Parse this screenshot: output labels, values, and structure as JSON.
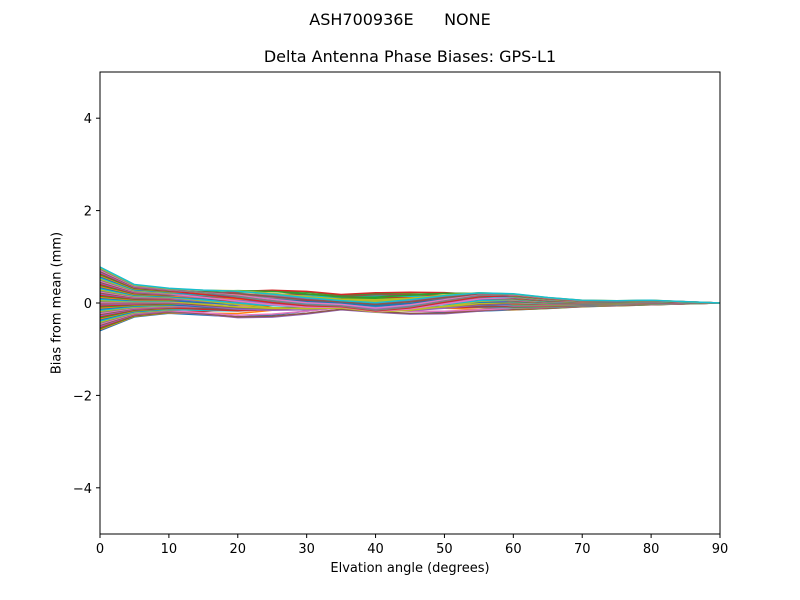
{
  "figure": {
    "suptitle": "ASH700936E      NONE",
    "title": "Delta Antenna Phase Biases: GPS-L1",
    "xlabel": "Elvation angle (degrees)",
    "ylabel": "Bias from mean (mm)"
  },
  "chart_data": {
    "type": "line",
    "title": "Delta Antenna Phase Biases: GPS-L1",
    "suptitle": "ASH700936E      NONE",
    "xlabel": "Elvation angle (degrees)",
    "ylabel": "Bias from mean (mm)",
    "xlim": [
      0,
      90
    ],
    "ylim": [
      -5,
      5
    ],
    "xticks": [
      0,
      10,
      20,
      30,
      40,
      50,
      60,
      70,
      80,
      90
    ],
    "yticks": [
      -4,
      -2,
      0,
      2,
      4
    ],
    "ytick_labels": [
      "−4",
      "−2",
      "0",
      "2",
      "4"
    ],
    "grid": false,
    "legend": null,
    "x": [
      0,
      5,
      10,
      15,
      20,
      25,
      30,
      35,
      40,
      45,
      50,
      55,
      60,
      65,
      70,
      75,
      80,
      85,
      90
    ],
    "envelope": {
      "upper": [
        0.78,
        0.4,
        0.32,
        0.33,
        0.38,
        0.37,
        0.3,
        0.2,
        0.22,
        0.27,
        0.3,
        0.28,
        0.2,
        0.12,
        0.06,
        0.05,
        0.06,
        0.03,
        0.0
      ],
      "lower": [
        -0.6,
        -0.3,
        -0.22,
        -0.28,
        -0.35,
        -0.33,
        -0.25,
        -0.15,
        -0.2,
        -0.25,
        -0.25,
        -0.2,
        -0.15,
        -0.12,
        -0.08,
        -0.06,
        -0.04,
        -0.02,
        0.0
      ]
    },
    "series_count_note": "many overlapping series (one per satellite/azimuth), default matplotlib color cycle",
    "colors": [
      "#1f77b4",
      "#ff7f0e",
      "#2ca02c",
      "#d62728",
      "#9467bd",
      "#8c564b",
      "#e377c2",
      "#7f7f7f",
      "#bcbd22",
      "#17becf"
    ],
    "n_series": 60
  }
}
